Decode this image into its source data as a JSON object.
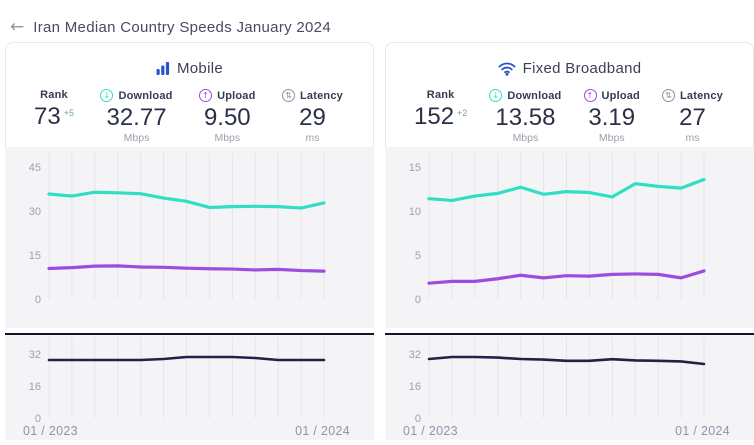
{
  "header": {
    "back_label": "←",
    "title": "Iran Median Country Speeds January 2024"
  },
  "colors": {
    "download": "#2fdfc3",
    "upload": "#9d4ce0",
    "latency_line": "#1e2442",
    "accent_blue": "#2b52c8",
    "rank_delta": "#6fa89a",
    "divider": "#13162b",
    "chart_bg": "#f4f4f6"
  },
  "cards": [
    {
      "title": "Mobile",
      "icon": "bar-chart",
      "stats": [
        {
          "label": "Rank",
          "value": "73",
          "delta": "+5"
        },
        {
          "label": "Download",
          "value": "32.77",
          "unit": "Mbps",
          "icon": "↓"
        },
        {
          "label": "Upload",
          "value": "9.50",
          "unit": "Mbps",
          "icon": "↑"
        },
        {
          "label": "Latency",
          "value": "29",
          "unit": "ms",
          "icon": "⇅"
        }
      ]
    },
    {
      "title": "Fixed Broadband",
      "icon": "wifi",
      "stats": [
        {
          "label": "Rank",
          "value": "152",
          "delta": "+2"
        },
        {
          "label": "Download",
          "value": "13.58",
          "unit": "Mbps",
          "icon": "↓"
        },
        {
          "label": "Upload",
          "value": "3.19",
          "unit": "Mbps",
          "icon": "↑"
        },
        {
          "label": "Latency",
          "value": "27",
          "unit": "ms",
          "icon": "⇅"
        }
      ]
    }
  ],
  "chart_data": [
    {
      "id": "mobile-speed",
      "type": "line",
      "title": "Mobile download/upload speeds over time",
      "x_range": [
        "01 / 2023",
        "01 / 2024"
      ],
      "n_points": 13,
      "ylim": [
        0,
        45
      ],
      "yticks": [
        45,
        30,
        15,
        0
      ],
      "grid": "vertical",
      "series": [
        {
          "name": "download",
          "color": "#2fdfc3",
          "width": 3.2,
          "values": [
            35.8,
            35.1,
            36.4,
            36.2,
            35.9,
            34.4,
            33.3,
            31.2,
            31.5,
            31.6,
            31.5,
            31.0,
            32.77
          ]
        },
        {
          "name": "upload",
          "color": "#9d4ce0",
          "width": 3.2,
          "values": [
            10.4,
            10.7,
            11.2,
            11.3,
            10.9,
            10.8,
            10.5,
            10.3,
            10.2,
            9.9,
            10.1,
            9.7,
            9.5
          ]
        }
      ]
    },
    {
      "id": "mobile-latency",
      "type": "line",
      "title": "Mobile latency over time",
      "x_labels": [
        "01 / 2023",
        "01 / 2024"
      ],
      "n_points": 13,
      "ylim": [
        0,
        32
      ],
      "yticks": [
        32,
        16,
        0
      ],
      "grid": "vertical",
      "series": [
        {
          "name": "latency",
          "color": "#1e2442",
          "width": 2.6,
          "values": [
            29,
            29,
            29,
            29,
            29,
            29.5,
            30.5,
            30.5,
            30.5,
            30,
            29,
            29,
            29
          ]
        }
      ]
    },
    {
      "id": "fixed-speed",
      "type": "line",
      "title": "Fixed broadband download/upload speeds over time",
      "x_range": [
        "01 / 2023",
        "01 / 2024"
      ],
      "n_points": 13,
      "ylim": [
        0,
        15
      ],
      "yticks": [
        15,
        10,
        5,
        0
      ],
      "grid": "vertical",
      "series": [
        {
          "name": "download",
          "color": "#2fdfc3",
          "width": 3.2,
          "values": [
            11.4,
            11.2,
            11.7,
            12.0,
            12.7,
            11.9,
            12.2,
            12.1,
            11.6,
            13.1,
            12.8,
            12.6,
            13.58
          ]
        },
        {
          "name": "upload",
          "color": "#9d4ce0",
          "width": 3.2,
          "values": [
            1.8,
            2.0,
            2.0,
            2.3,
            2.7,
            2.4,
            2.65,
            2.6,
            2.8,
            2.85,
            2.8,
            2.4,
            3.19
          ]
        }
      ]
    },
    {
      "id": "fixed-latency",
      "type": "line",
      "title": "Fixed broadband latency over time",
      "x_labels": [
        "01 / 2023",
        "01 / 2024"
      ],
      "n_points": 13,
      "ylim": [
        0,
        32
      ],
      "yticks": [
        32,
        16,
        0
      ],
      "grid": "vertical",
      "series": [
        {
          "name": "latency",
          "color": "#1e2442",
          "width": 2.6,
          "values": [
            29.5,
            30.5,
            30.5,
            30.2,
            29.5,
            29.2,
            28.6,
            28.6,
            29.4,
            28.8,
            28.6,
            28.3,
            27
          ]
        }
      ]
    }
  ]
}
